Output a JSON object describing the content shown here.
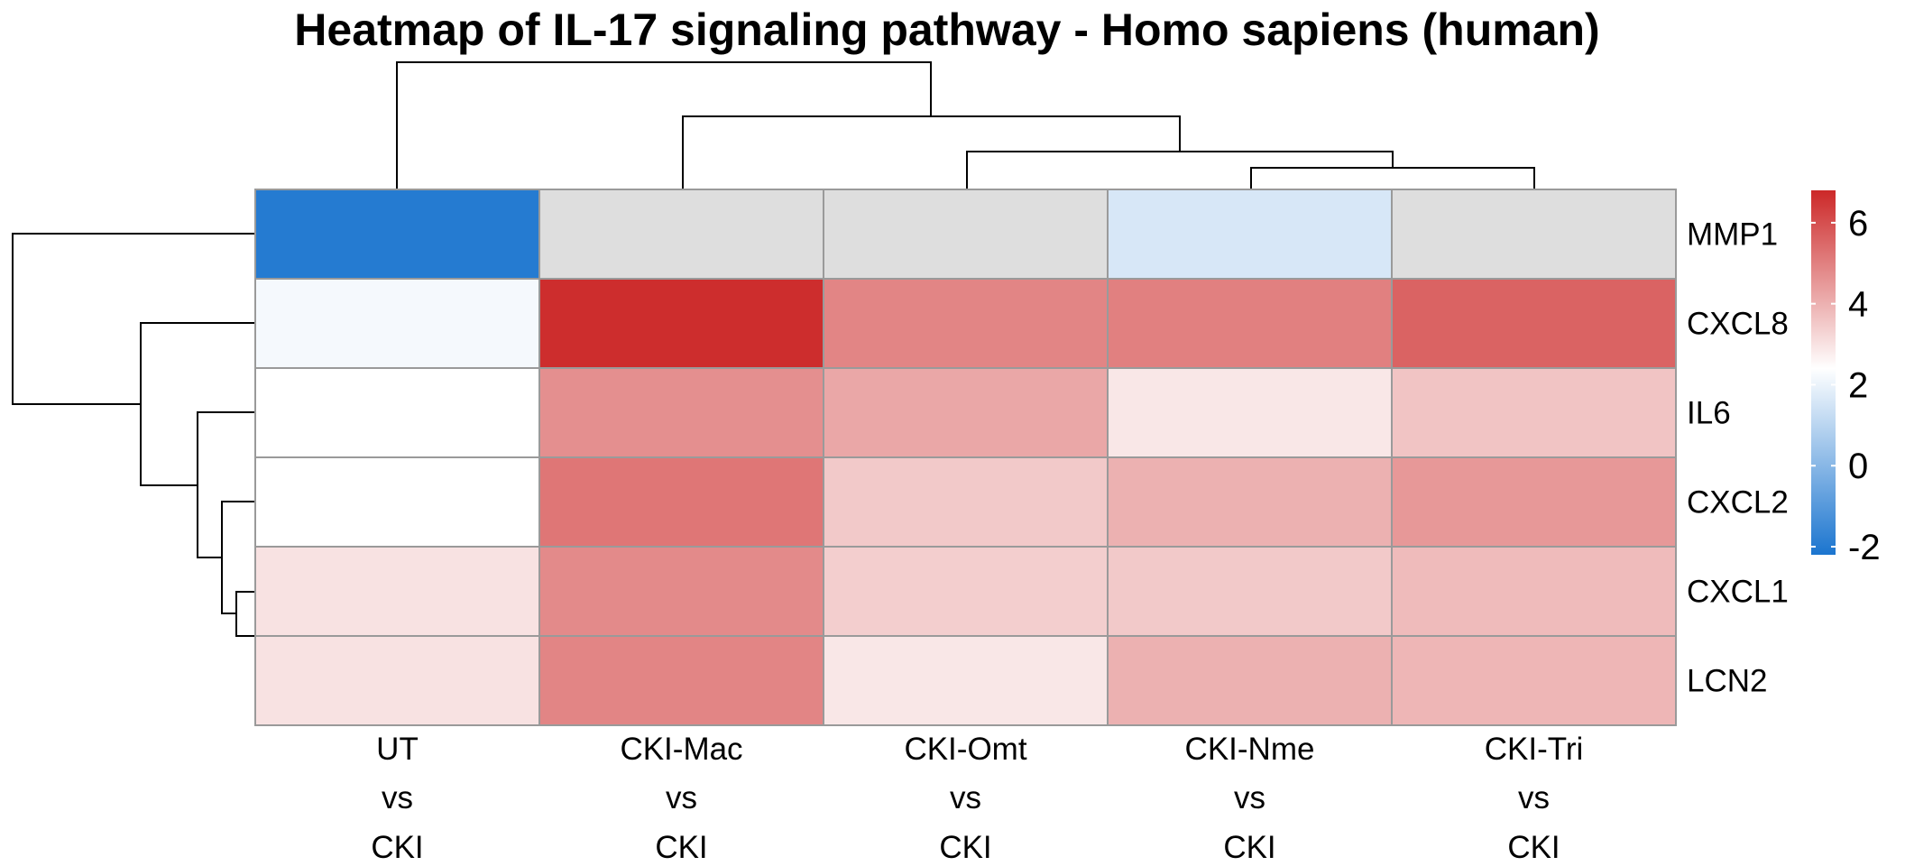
{
  "chart_data": {
    "type": "heatmap",
    "title": "Heatmap of IL-17 signaling pathway - Homo sapiens (human)",
    "columns": [
      {
        "lines": [
          "UT",
          "vs",
          "CKI"
        ]
      },
      {
        "lines": [
          "CKI-Mac",
          "vs",
          "CKI"
        ]
      },
      {
        "lines": [
          "CKI-Omt",
          "vs",
          "CKI"
        ]
      },
      {
        "lines": [
          "CKI-Nme",
          "vs",
          "CKI"
        ]
      },
      {
        "lines": [
          "CKI-Tri",
          "vs",
          "CKI"
        ]
      }
    ],
    "rows": [
      "MMP1",
      "CXCL8",
      "IL6",
      "CXCL2",
      "CXCL1",
      "LCN2"
    ],
    "values": [
      [
        -2.0,
        null,
        null,
        1.6,
        null
      ],
      [
        2.2,
        6.7,
        4.9,
        5.0,
        5.6
      ],
      [
        2.4,
        4.7,
        4.2,
        2.9,
        3.6
      ],
      [
        2.4,
        5.2,
        3.5,
        4.0,
        4.5
      ],
      [
        3.0,
        4.8,
        3.4,
        3.5,
        3.8
      ],
      [
        3.0,
        4.9,
        2.9,
        4.0,
        3.9
      ]
    ],
    "missing_color": "#dedede",
    "color_scale": {
      "low": "#1b75cf",
      "mid": "#ffffff",
      "high": "#cc2828",
      "min": -2.2,
      "mid_value": 2.4,
      "max": 6.8
    },
    "legend": {
      "ticks": [
        6,
        4,
        2,
        0,
        -2
      ],
      "placement": "right"
    },
    "column_dendrogram": {
      "order": [
        0,
        1,
        2,
        3,
        4
      ],
      "merges": [
        [
          3,
          4,
          0.45
        ],
        [
          2,
          "34",
          1.05
        ],
        [
          1,
          "234",
          2.05
        ],
        [
          0,
          "1234",
          3.5
        ]
      ]
    },
    "row_dendrogram": {
      "order": [
        0,
        1,
        2,
        3,
        4,
        5
      ],
      "merges": [
        [
          4,
          5,
          0.55
        ],
        [
          3,
          "45",
          0.9
        ],
        [
          2,
          "345",
          1.5
        ],
        [
          1,
          "2345",
          2.7
        ],
        [
          0,
          "12345",
          4.0
        ]
      ]
    }
  }
}
